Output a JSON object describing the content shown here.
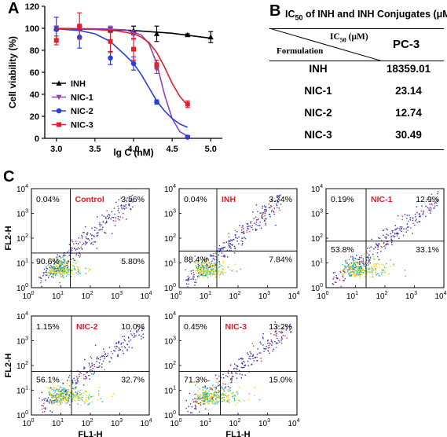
{
  "panel_labels": {
    "a": "A",
    "b": "B",
    "c": "C"
  },
  "chart_data": [
    {
      "type": "line",
      "panel": "A",
      "xlabel": "lg C (nM)",
      "ylabel": "Cell viability (%)",
      "xlim": [
        2.85,
        5.15
      ],
      "ylim": [
        0,
        120
      ],
      "x_ticks": [
        "3.0",
        "3.5",
        "4.0",
        "4.5",
        "5.0"
      ],
      "x_tick_values": [
        3.0,
        3.5,
        4.0,
        4.5,
        5.0
      ],
      "y_ticks": [
        "0",
        "20",
        "40",
        "60",
        "80",
        "100",
        "120"
      ],
      "y_tick_values": [
        0,
        20,
        40,
        60,
        80,
        100,
        120
      ],
      "legend_position": "left",
      "series": [
        {
          "name": "INH",
          "color": "#000000",
          "marker": "triangle-up",
          "x": [
            3.0,
            3.3,
            3.7,
            4.0,
            4.3,
            4.7,
            5.0
          ],
          "y": [
            100,
            100,
            99,
            98,
            95,
            94,
            92
          ],
          "err": [
            2,
            2,
            2,
            4,
            7,
            1,
            5
          ],
          "fit": [
            [
              3.0,
              99.5
            ],
            [
              3.5,
              99.2
            ],
            [
              4.0,
              98
            ],
            [
              4.5,
              95.5
            ],
            [
              5.0,
              91
            ]
          ]
        },
        {
          "name": "NIC-1",
          "color": "#8b45c4",
          "marker": "triangle-down",
          "x": [
            3.0,
            3.3,
            3.7,
            4.0,
            4.3,
            4.7
          ],
          "y": [
            100,
            100,
            99,
            94,
            63,
            1
          ],
          "err": [
            2,
            2,
            3,
            4,
            4,
            1
          ],
          "fit": [
            [
              3.0,
              100
            ],
            [
              3.6,
              99.5
            ],
            [
              3.9,
              98.5
            ],
            [
              4.1,
              94
            ],
            [
              4.2,
              86
            ],
            [
              4.3,
              68
            ],
            [
              4.4,
              40
            ],
            [
              4.5,
              18
            ],
            [
              4.6,
              6
            ],
            [
              4.7,
              2
            ]
          ]
        },
        {
          "name": "NIC-2",
          "color": "#2b3fd8",
          "marker": "circle",
          "x": [
            3.0,
            3.3,
            3.7,
            4.0,
            4.3,
            4.7
          ],
          "y": [
            99,
            92,
            73,
            68,
            33,
            1
          ],
          "err": [
            11,
            10,
            6,
            6,
            2,
            1
          ],
          "fit": [
            [
              3.0,
              99.5
            ],
            [
              3.3,
              98
            ],
            [
              3.5,
              95
            ],
            [
              3.7,
              88
            ],
            [
              3.9,
              75
            ],
            [
              4.0,
              68
            ],
            [
              4.1,
              58
            ],
            [
              4.2,
              46
            ],
            [
              4.3,
              34
            ],
            [
              4.4,
              25
            ],
            [
              4.5,
              18
            ],
            [
              4.6,
              13
            ],
            [
              4.7,
              10
            ]
          ]
        },
        {
          "name": "NIC-3",
          "color": "#e0202c",
          "marker": "square",
          "x": [
            3.0,
            3.3,
            3.7,
            4.0,
            4.3,
            4.7
          ],
          "y": [
            89,
            102,
            88,
            81,
            67,
            31
          ],
          "err": [
            4,
            12,
            10,
            10,
            4,
            3
          ],
          "fit": [
            [
              3.0,
              99.5
            ],
            [
              3.5,
              99
            ],
            [
              3.8,
              97.5
            ],
            [
              4.0,
              95
            ],
            [
              4.1,
              92
            ],
            [
              4.2,
              87
            ],
            [
              4.3,
              78
            ],
            [
              4.4,
              65
            ],
            [
              4.5,
              50
            ],
            [
              4.6,
              38
            ],
            [
              4.7,
              30
            ]
          ]
        }
      ]
    },
    {
      "type": "table",
      "panel": "B",
      "title_main": "IC",
      "title_sub": "50",
      "title_rest": " of INH and INH Conjugates (μM)",
      "header_ic50_main": "IC",
      "header_ic50_sub": "50",
      "header_ic50_rest": " (μM)",
      "header_formulation": "Formulation",
      "header_col": "PC-3",
      "rows": [
        {
          "name": "INH",
          "value": "18359.01"
        },
        {
          "name": "NIC-1",
          "value": "23.14"
        },
        {
          "name": "NIC-2",
          "value": "12.74"
        },
        {
          "name": "NIC-3",
          "value": "30.49"
        }
      ]
    },
    {
      "type": "scatter",
      "panel": "C",
      "xlabel": "FL1-H",
      "ylabel": "FL2-H",
      "axis_scale": "log",
      "tick_base": "10",
      "tick_exponents": [
        "0",
        "1",
        "2",
        "3",
        "4"
      ],
      "label_color": "#d8202c",
      "plots": [
        {
          "label": "Control",
          "q_ul": "0.04%",
          "q_ur": "3.56%",
          "q_ll": "90.6%",
          "q_lr": "5.80%"
        },
        {
          "label": "INH",
          "q_ul": "0.04%",
          "q_ur": "3.74%",
          "q_ll": "88.4%",
          "q_lr": "7.84%"
        },
        {
          "label": "NIC-1",
          "q_ul": "0.19%",
          "q_ur": "12.9%",
          "q_ll": "53.8%",
          "q_lr": "33.1%"
        },
        {
          "label": "NIC-2",
          "q_ul": "1.15%",
          "q_ur": "10.0%",
          "q_ll": "56.1%",
          "q_lr": "32.7%"
        },
        {
          "label": "NIC-3",
          "q_ul": "0.45%",
          "q_ur": "13.2%",
          "q_ll": "71.3%",
          "q_lr": "15.0%"
        }
      ]
    }
  ]
}
